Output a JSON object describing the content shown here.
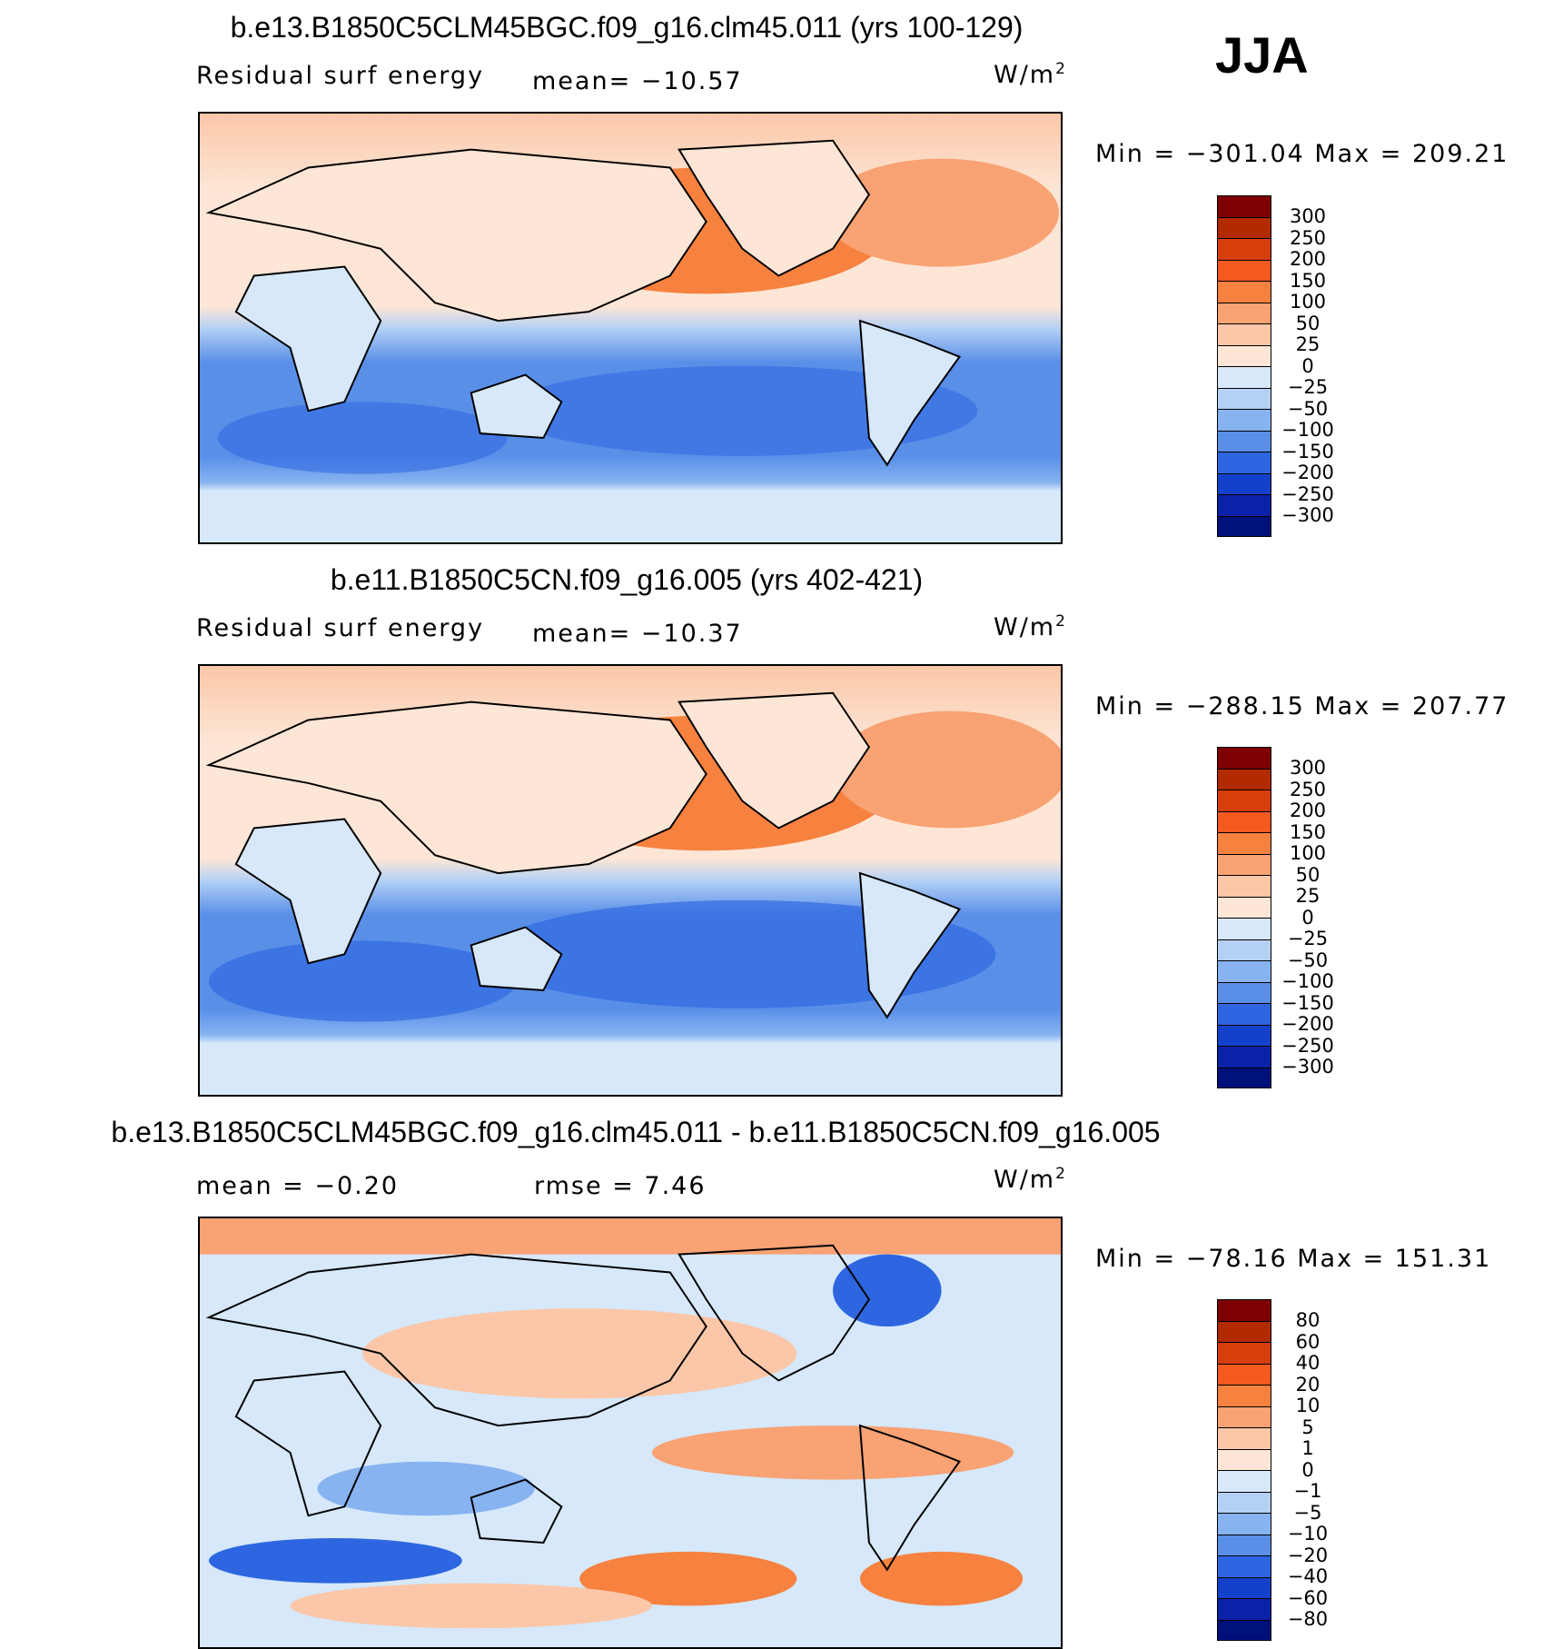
{
  "season": "JJA",
  "units": "W/m",
  "units_sup": "2",
  "panel1": {
    "title": "b.e13.B1850C5CLM45BGC.f09_g16.clm45.011 (yrs 100-129)",
    "variable": "Residual surf energy",
    "mean": "mean= −10.57",
    "minmax": "Min = −301.04 Max = 209.21"
  },
  "panel2": {
    "title": "b.e11.B1850C5CN.f09_g16.005 (yrs 402-421)",
    "variable": "Residual surf energy",
    "mean": "mean= −10.37",
    "minmax": "Min = −288.15 Max = 207.77"
  },
  "panel3": {
    "title": "b.e13.B1850C5CLM45BGC.f09_g16.clm45.011 - b.e11.B1850C5CN.f09_g16.005",
    "mean": "mean =  −0.20",
    "rmse": "rmse =    7.46",
    "minmax": "Min = −78.16 Max = 151.31"
  },
  "colorbar_main": {
    "levels": [
      "300",
      "250",
      "200",
      "150",
      "100",
      "50",
      "25",
      "0",
      "−25",
      "−50",
      "−100",
      "−150",
      "−200",
      "−250",
      "−300"
    ],
    "colors": [
      "#7f0000",
      "#b22a00",
      "#d63e0c",
      "#f55a1e",
      "#f7813f",
      "#f9a273",
      "#fbc7a8",
      "#fde6d6",
      "#d6e8fa",
      "#b4d1f5",
      "#87b3f0",
      "#5a8fe8",
      "#2d66e0",
      "#1441cc",
      "#0a22a8",
      "#00107a"
    ]
  },
  "colorbar_diff": {
    "levels": [
      "80",
      "60",
      "40",
      "20",
      "10",
      "5",
      "1",
      "0",
      "−1",
      "−5",
      "−10",
      "−20",
      "−40",
      "−60",
      "−80"
    ],
    "colors": [
      "#7f0000",
      "#b22a00",
      "#d63e0c",
      "#f55a1e",
      "#f7813f",
      "#f9a273",
      "#fbc7a8",
      "#fde6d6",
      "#d6e8fa",
      "#b4d1f5",
      "#87b3f0",
      "#5a8fe8",
      "#2d66e0",
      "#1441cc",
      "#0a22a8",
      "#00107a"
    ]
  }
}
